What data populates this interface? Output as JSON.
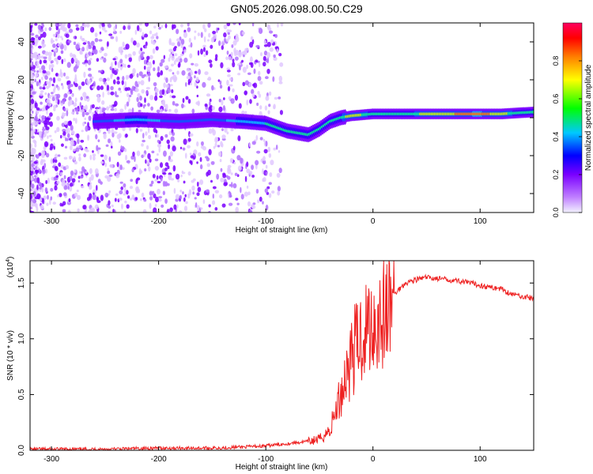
{
  "figure_title": "GN05.2026.098.00.50.C29",
  "chart_data": [
    {
      "type": "heatmap",
      "title": "",
      "xlabel": "Height of straight line (km)",
      "ylabel": "Frequency (Hz)",
      "xlim": [
        -320,
        150
      ],
      "ylim": [
        -50,
        50
      ],
      "xticks": [
        -300,
        -200,
        -100,
        0,
        100
      ],
      "yticks": [
        -40,
        -20,
        0,
        20,
        40
      ],
      "colorbar": {
        "label": "Normalized spectral amplitude",
        "range": [
          0,
          1
        ],
        "ticks": [
          0.0,
          0.2,
          0.4,
          0.6,
          0.8
        ]
      },
      "colormap": [
        "#ffffff",
        "#c080ff",
        "#7a00ff",
        "#0000ff",
        "#00c8ff",
        "#00ff00",
        "#ffff00",
        "#ff8000",
        "#ff0000",
        "#ff0060"
      ],
      "ridge": {
        "name": "",
        "x": [
          -260,
          -220,
          -180,
          -150,
          -120,
          -100,
          -80,
          -60,
          -50,
          -40,
          -30,
          -20,
          0,
          20,
          50,
          100,
          120,
          150
        ],
        "y": [
          -2,
          -1,
          -2,
          -1,
          -2,
          -3,
          -7,
          -9,
          -6,
          -2,
          0,
          1,
          2,
          2,
          2,
          2,
          2,
          3
        ],
        "amplitude": [
          0.4,
          0.45,
          0.4,
          0.4,
          0.45,
          0.5,
          0.5,
          0.5,
          0.5,
          0.5,
          0.55,
          0.6,
          0.55,
          0.5,
          0.6,
          0.7,
          0.6,
          0.5
        ]
      }
    },
    {
      "type": "line",
      "title": "",
      "xlabel": "Height of straight line (km)",
      "ylabel": "SNR (10 * v/v)",
      "y_multiplier": "(x10",
      "y_multiplier_exp": "4",
      "y_multiplier_close": ")",
      "xlim": [
        -320,
        150
      ],
      "ylim": [
        0,
        1.7
      ],
      "xticks": [
        -300,
        -200,
        -100,
        0,
        100
      ],
      "yticks": [
        0.0,
        0.5,
        1.0,
        1.5
      ],
      "series": [
        {
          "name": "",
          "color": "#ee2222",
          "x": [
            -320,
            -250,
            -200,
            -150,
            -120,
            -100,
            -80,
            -60,
            -50,
            -40,
            -35,
            -30,
            -25,
            -20,
            -15,
            -10,
            -5,
            0,
            5,
            10,
            15,
            20,
            30,
            40,
            50,
            60,
            70,
            80,
            90,
            100,
            110,
            120,
            125,
            130,
            140,
            150
          ],
          "y": [
            0.01,
            0.01,
            0.02,
            0.02,
            0.03,
            0.04,
            0.06,
            0.08,
            0.1,
            0.18,
            0.35,
            0.5,
            0.7,
            0.85,
            0.95,
            1.05,
            1.12,
            1.15,
            1.18,
            1.22,
            1.3,
            1.4,
            1.5,
            1.53,
            1.55,
            1.54,
            1.53,
            1.52,
            1.5,
            1.48,
            1.46,
            1.45,
            1.42,
            1.4,
            1.38,
            1.36
          ]
        }
      ]
    }
  ]
}
